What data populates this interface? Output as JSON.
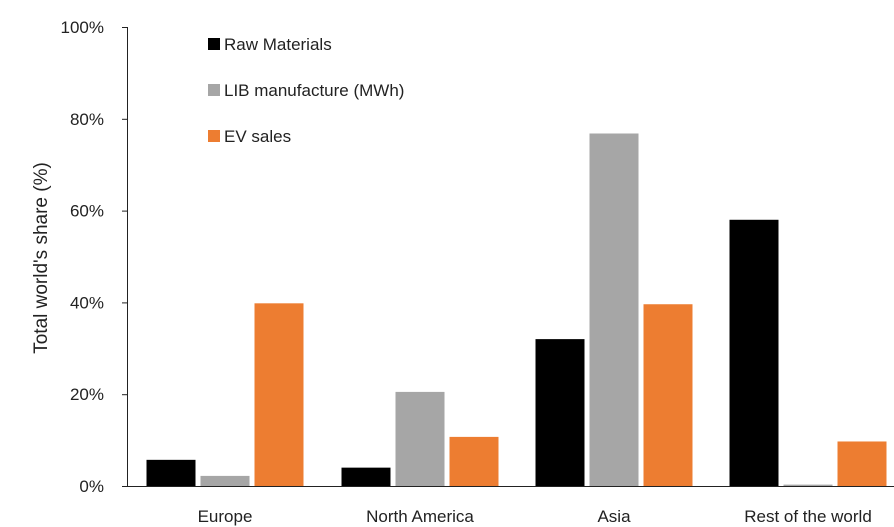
{
  "chart_data": {
    "type": "bar",
    "title": "",
    "xlabel": "",
    "ylabel": "Total world's share (%)",
    "ylim": [
      0,
      100
    ],
    "yticks": [
      "0%",
      "20%",
      "40%",
      "60%",
      "80%",
      "100%"
    ],
    "categories": [
      "Europe",
      "North America",
      "Asia",
      "Rest of the world"
    ],
    "series": [
      {
        "name": "Raw Materials",
        "color": "#000000",
        "values": [
          5.7,
          4.0,
          32.0,
          58.0
        ]
      },
      {
        "name": "LIB manufacture (MWh)",
        "color": "#a6a6a6",
        "values": [
          2.2,
          20.5,
          76.8,
          0.3
        ]
      },
      {
        "name": "EV sales",
        "color": "#ed7d31",
        "values": [
          39.8,
          10.7,
          39.6,
          9.7
        ]
      }
    ],
    "grid": false,
    "legend": "top-left"
  }
}
